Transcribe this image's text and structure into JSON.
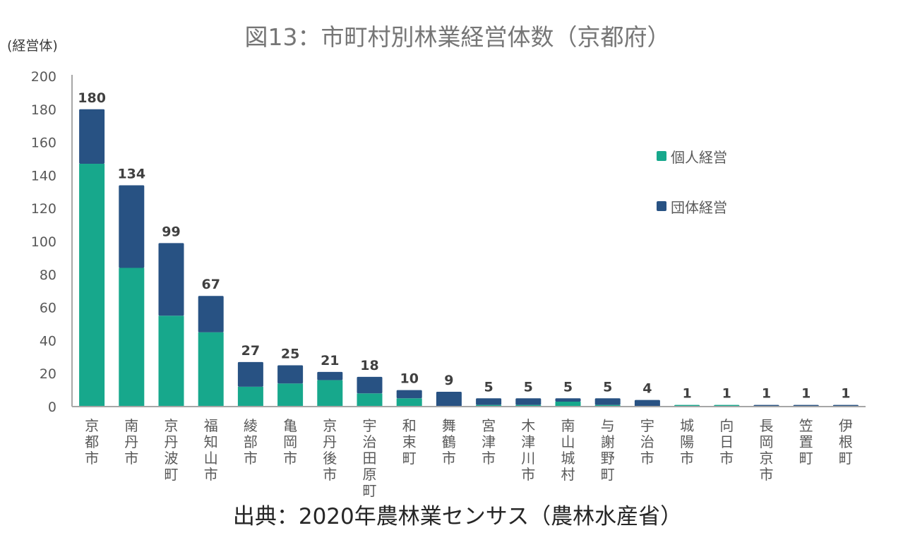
{
  "chart_data": {
    "type": "bar",
    "stacked": true,
    "title": "図13：市町村別林業経営体数（京都府）",
    "xlabel": "",
    "ylabel": "(経営体)",
    "ylim": [
      0,
      200
    ],
    "yticks": [
      0,
      20,
      40,
      60,
      80,
      100,
      120,
      140,
      160,
      180,
      200
    ],
    "grid": false,
    "legend_position": "right",
    "categories": [
      "京都市",
      "南丹市",
      "京丹波町",
      "福知山市",
      "綾部市",
      "亀岡市",
      "京丹後市",
      "宇治田原町",
      "和束町",
      "舞鶴市",
      "宮津市",
      "木津川市",
      "南山城村",
      "与謝野町",
      "宇治市",
      "城陽市",
      "向日市",
      "長岡京市",
      "笠置町",
      "伊根町"
    ],
    "series": [
      {
        "name": "個人経営",
        "color": "#17a88c",
        "values": [
          147,
          84,
          55,
          45,
          12,
          14,
          16,
          8,
          5,
          0,
          1,
          1,
          3,
          1,
          0,
          1,
          1,
          0,
          0,
          0
        ]
      },
      {
        "name": "団体経営",
        "color": "#285283",
        "values": [
          33,
          50,
          44,
          22,
          15,
          11,
          5,
          10,
          5,
          9,
          4,
          4,
          2,
          4,
          4,
          0,
          0,
          1,
          1,
          1
        ]
      }
    ],
    "totals": [
      180,
      134,
      99,
      67,
      27,
      25,
      21,
      18,
      10,
      9,
      5,
      5,
      5,
      5,
      4,
      1,
      1,
      1,
      1,
      1
    ]
  },
  "header": {
    "title": "図13：市町村別林業経営体数（京都府）",
    "y_unit": "(経営体)"
  },
  "legend": [
    {
      "label": "個人経営",
      "color": "#17a88c"
    },
    {
      "label": "団体経営",
      "color": "#285283"
    }
  ],
  "footer": {
    "source": "出典：2020年農林業センサス（農林水産省）"
  },
  "colors": {
    "axis": "#a6a6a6",
    "tick_label": "#595959",
    "data_label": "#404040"
  }
}
